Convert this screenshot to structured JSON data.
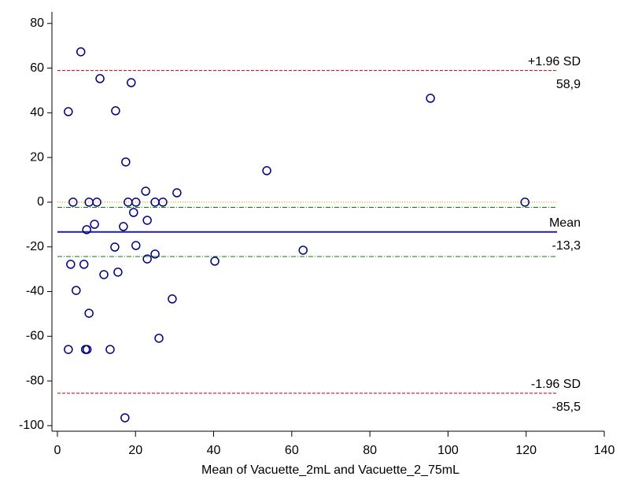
{
  "chart_data": {
    "type": "scatter",
    "x_label": "Mean of Vacuette_2mL and Vacuette_2_75mL",
    "xlim": [
      -1.4,
      140
    ],
    "xticks": [
      0,
      20,
      40,
      60,
      80,
      100,
      120,
      140
    ],
    "ylim": [
      -102.5,
      85.2
    ],
    "yticks": [
      -100,
      -80,
      -60,
      -40,
      -20,
      0,
      20,
      40,
      60,
      80
    ],
    "color": "#000080",
    "x": [
      2.8,
      6.0,
      10.9,
      18.9,
      14.9,
      95.5,
      17.5,
      53.6,
      22.6,
      30.6,
      4.0,
      8.1,
      10.1,
      18.1,
      20.1,
      25.0,
      27.0,
      119.7,
      19.5,
      23.0,
      9.5,
      7.5,
      16.9,
      14.7,
      20.1,
      25.0,
      23.0,
      62.9,
      40.3,
      3.4,
      6.8,
      11.9,
      15.5,
      4.8,
      29.4,
      8.1,
      26.0,
      2.8,
      7.2,
      7.6,
      13.5,
      17.3
    ],
    "y": [
      40.5,
      67.3,
      55.3,
      53.5,
      40.9,
      46.5,
      18.0,
      14.1,
      4.9,
      4.2,
      0,
      0,
      0,
      0,
      0,
      0,
      0,
      0,
      -4.6,
      -8.1,
      -9.9,
      -12.3,
      -10.9,
      -20.1,
      -19.4,
      -23.2,
      -25.4,
      -21.5,
      -26.4,
      -27.8,
      -27.8,
      -32.4,
      -31.3,
      -39.5,
      -43.3,
      -49.7,
      -60.9,
      -65.9,
      -65.9,
      -65.9,
      -65.9,
      -96.5
    ],
    "reference_lines": [
      {
        "name": "+1.96 SD",
        "value": 58.9,
        "value_label": "58,9",
        "color": "#c00000",
        "style": "dashed"
      },
      {
        "value": 0,
        "color": "#e08000",
        "style": "dotted"
      },
      {
        "value": -2.3,
        "color": "#008000",
        "style": "dashdot"
      },
      {
        "name": "Mean",
        "value": -13.3,
        "value_label": "-13,3",
        "color": "#1f1f9f",
        "style": "solid"
      },
      {
        "value": -24.3,
        "color": "#008000",
        "style": "dashdot"
      },
      {
        "name": "-1.96 SD",
        "value": -85.5,
        "value_label": "-85,5",
        "color": "#c00000",
        "style": "dashed"
      }
    ]
  }
}
